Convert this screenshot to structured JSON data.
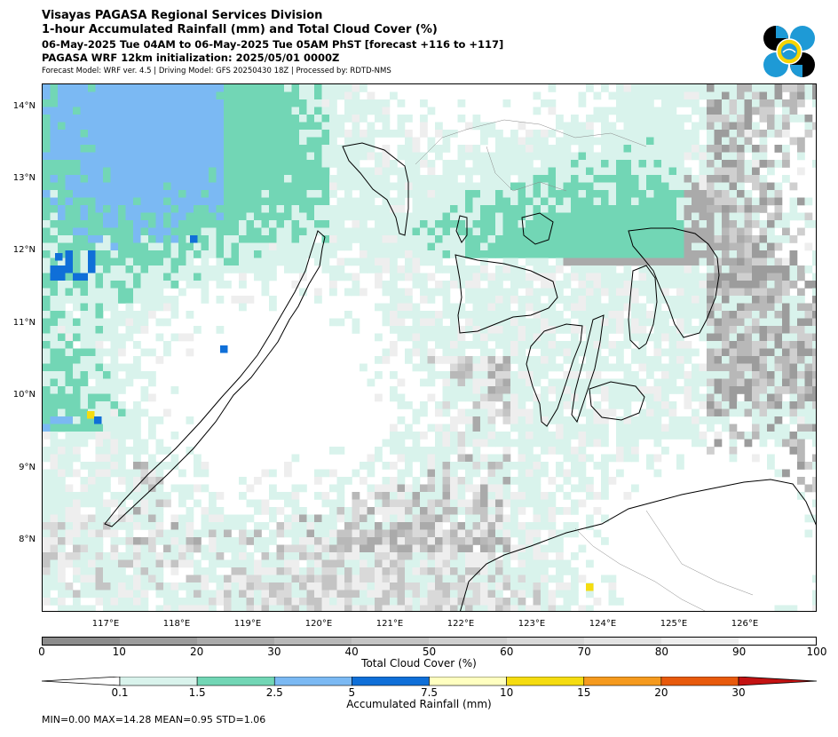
{
  "header": {
    "title_line1": "Visayas PAGASA Regional Services Division",
    "title_line2": "1-hour Accumulated Rainfall (mm) and Total Cloud Cover (%)",
    "valid_time": "06-May-2025 Tue 04AM to 06-May-2025 Tue 05AM PhST [forecast +116 to +117]",
    "init_time": "PAGASA WRF 12km initialization: 2025/05/01 0000Z",
    "model_info": "Forecast Model: WRF ver. 4.5 | Driving Model: GFS 20250430 18Z | Processed by: RDTD-NMS"
  },
  "logo": {
    "icon": "pagasa-logo-icon",
    "colors": [
      "#000000",
      "#1e9ad6",
      "#f5d400"
    ]
  },
  "map": {
    "lat_labels": [
      "14°N",
      "13°N",
      "12°N",
      "11°N",
      "10°N",
      "9°N",
      "8°N"
    ],
    "lon_labels": [
      "117°E",
      "118°E",
      "119°E",
      "120°E",
      "121°E",
      "122°E",
      "123°E",
      "124°E",
      "125°E",
      "126°E"
    ]
  },
  "cloud_cover_scale": {
    "label": "Total Cloud Cover (%)",
    "ticks": [
      "0",
      "10",
      "20",
      "30",
      "40",
      "50",
      "60",
      "70",
      "80",
      "90",
      "100"
    ],
    "colors": [
      "#8c8c8c",
      "#9c9c9c",
      "#aaaaaa",
      "#b8b8b8",
      "#c4c4c4",
      "#cfcfcf",
      "#d9d9d9",
      "#e3e3e3",
      "#eeeeee",
      "#ffffff"
    ]
  },
  "rainfall_scale": {
    "label": "Accumulated Rainfall (mm)",
    "ticks": [
      "0.1",
      "1.5",
      "2.5",
      "5",
      "7.5",
      "10",
      "15",
      "20",
      "30"
    ],
    "colors": [
      "#ffffff",
      "#d9f3ec",
      "#72d6b5",
      "#7bb9f3",
      "#0f6fd8",
      "#ffffc0",
      "#f5dc10",
      "#f59a1e",
      "#e85a0c",
      "#c41212"
    ]
  },
  "stats": {
    "text": "MIN=0.00   MAX=14.28   MEAN=0.95   STD=1.06"
  }
}
